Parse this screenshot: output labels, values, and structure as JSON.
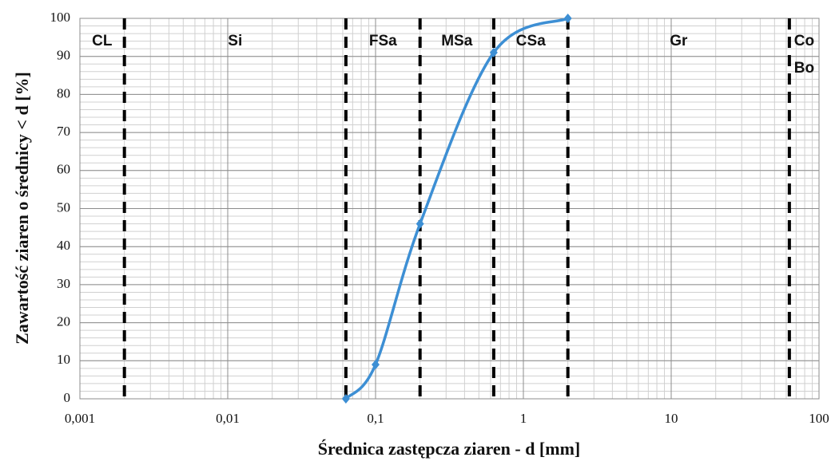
{
  "chart_data": {
    "type": "line",
    "log_x": true,
    "xlabel": "Średnica zastępcza ziaren - d [mm]",
    "ylabel": "Zawartość ziaren o średnicy < d [%]",
    "series": [
      {
        "color": "#3d8fd4",
        "x": [
          0.063,
          0.1,
          0.2,
          0.63,
          2
        ],
        "values": [
          0,
          9,
          46,
          91,
          100
        ]
      }
    ],
    "xlim": [
      0.001,
      100
    ],
    "xticks": [
      {
        "value": 0.001,
        "label": "0,001"
      },
      {
        "value": 0.01,
        "label": "0,01"
      },
      {
        "value": 0.1,
        "label": "0,1"
      },
      1,
      10,
      100
    ],
    "ylim": [
      0,
      100
    ],
    "yticks": [
      0,
      10,
      20,
      30,
      40,
      50,
      60,
      70,
      80,
      90,
      100
    ],
    "grid": true,
    "minor_grid": true,
    "boundaries": [
      0.002,
      0.063,
      0.2,
      0.63,
      2,
      63
    ],
    "zones": [
      [
        "CL"
      ],
      [
        "Si"
      ],
      [
        "FSa"
      ],
      [
        "MSa"
      ],
      [
        "CSa"
      ],
      [
        "Gr"
      ],
      [
        "Co",
        "Bo"
      ]
    ]
  }
}
